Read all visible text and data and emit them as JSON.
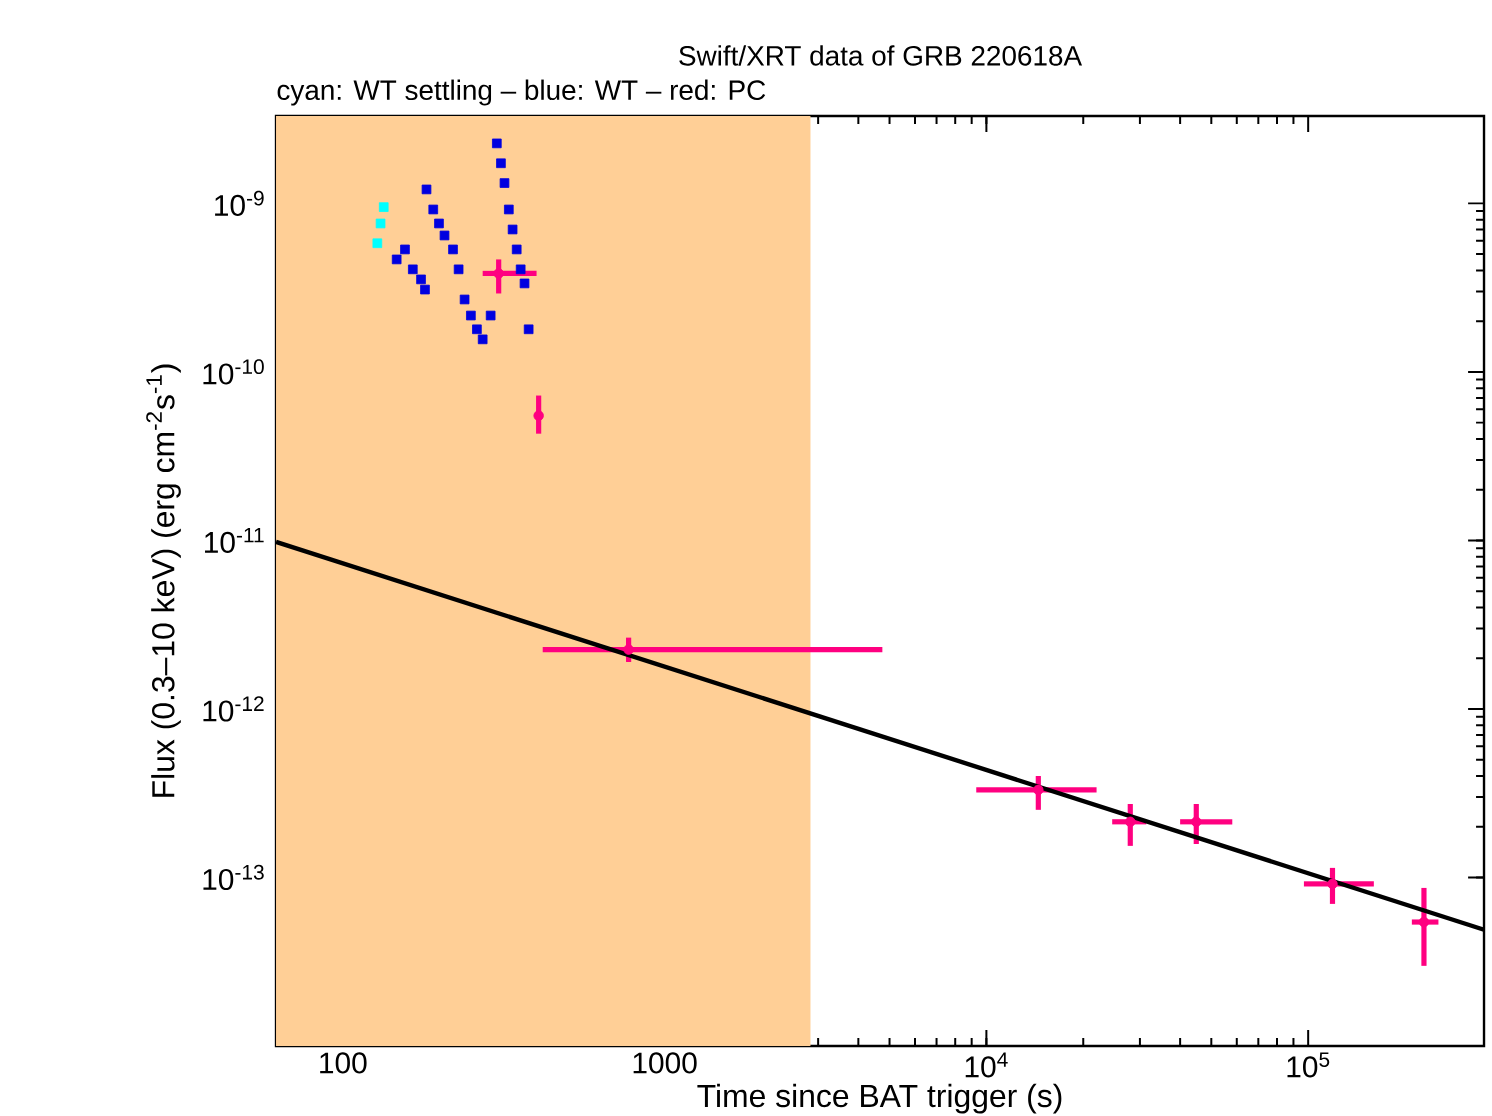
{
  "chart_data": {
    "type": "scatter",
    "title": "Swift/XRT data of GRB 220618A",
    "subtitle": "cyan: WT settling – blue: WT – red: PC",
    "xlabel": "Time since BAT trigger (s)",
    "ylabel": "Flux (0.3–10 keV) (erg cm$^{-2}$s$^{-1}$)",
    "log": "xy",
    "xlim": [
      62,
      352000
    ],
    "ylim": [
      1e-14,
      3.3e-09
    ],
    "xticks": [
      100,
      1000,
      {
        "value": 10000,
        "label": "10$^{4}$"
      },
      {
        "value": 100000,
        "label": "10$^{5}$"
      }
    ],
    "yticks": [
      {
        "value": 1e-13,
        "label": "10$^{-13}$"
      },
      {
        "value": 1e-12,
        "label": "10$^{-12}$"
      },
      {
        "value": 1e-11,
        "label": "10$^{-11}$"
      },
      {
        "value": 1e-10,
        "label": "10$^{-10}$"
      },
      {
        "value": 1e-09,
        "label": "10$^{-9}$"
      }
    ],
    "bands": [
      {
        "axis": "x",
        "from": 62,
        "to": 2840,
        "color": "#ffcf96"
      }
    ],
    "series": [
      {
        "marker": "square",
        "color": "#00ffff",
        "x": [
          128,
          131,
          134
        ],
        "values": [
          5.8e-10,
          7.6e-10,
          9.5e-10
        ]
      },
      {
        "marker": "square",
        "color": "#0000e0",
        "x": [
          147,
          156,
          165,
          175,
          180,
          182,
          191,
          199,
          207,
          220,
          229,
          239,
          250,
          261,
          272,
          288,
          301,
          310,
          318,
          328,
          337,
          347,
          357,
          367,
          378
        ],
        "values": [
          4.65e-10,
          5.33e-10,
          4.06e-10,
          3.54e-10,
          3.08e-10,
          1.21e-09,
          9.2e-10,
          7.6e-10,
          6.45e-10,
          5.33e-10,
          4.06e-10,
          2.69e-10,
          2.16e-10,
          1.79e-10,
          1.56e-10,
          2.16e-10,
          2.27e-09,
          1.73e-09,
          1.32e-09,
          9.2e-10,
          7e-10,
          5.33e-10,
          4.06e-10,
          3.35e-10,
          1.79e-10
        ]
      },
      {
        "color": "#ff0080",
        "x": [
          305,
          406,
          773,
          14500,
          28000,
          44900,
          119000,
          229000
        ],
        "values": [
          3.84e-10,
          5.5e-11,
          2.25e-12,
          3.31e-13,
          2.14e-13,
          2.14e-13,
          9.16e-14,
          5.44e-14
        ],
        "errors": [
          [
            2.92e-10,
            4.65e-10
          ],
          [
            4.3e-11,
            7.24e-11
          ],
          [
            1.9e-12,
            2.65e-12
          ],
          [
            2.52e-13,
            4e-13
          ],
          [
            1.54e-13,
            2.73e-13
          ],
          [
            1.58e-13,
            2.73e-13
          ],
          [
            6.97e-14,
            1.14e-13
          ],
          [
            2.99e-14,
            8.67e-14
          ]
        ],
        "xerrors": [
          [
            272,
            400
          ],
          [
            400,
            412
          ],
          [
            418,
            4750
          ],
          [
            9300,
            22000
          ],
          [
            24600,
            31400
          ],
          [
            40000,
            58100
          ],
          [
            97000,
            160000
          ],
          [
            210000,
            254000
          ]
        ]
      },
      {
        "type": "line",
        "color": "#000000",
        "x": [
          62,
          352000
        ],
        "values": [
          9.8e-12,
          4.9e-14
        ]
      }
    ]
  }
}
